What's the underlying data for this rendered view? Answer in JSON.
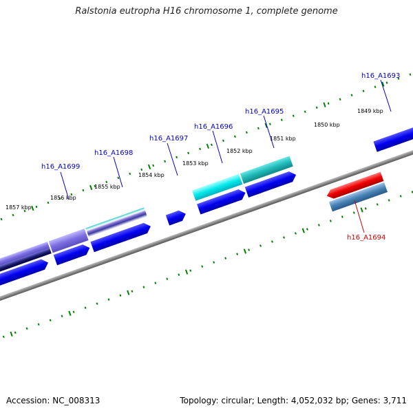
{
  "title": "Ralstonia eutropha H16 chromosome 1, complete genome",
  "accession": "Accession: NC_008313",
  "summary": "Topology: circular; Length: 4,052,032 bp; Genes: 3,711",
  "ticks": [
    "1857 kbp",
    "1856 kbp",
    "1855 kbp",
    "1854 kbp",
    "1853 kbp",
    "1852 kbp",
    "1851 kbp",
    "1850 kbp",
    "1849 kbp"
  ],
  "forward_labels": [
    "h16_A1699",
    "h16_A1698",
    "h16_A1697",
    "h16_A1696",
    "h16_A1695",
    "h16_A1693"
  ],
  "reverse_labels": [
    "h16_A1694"
  ],
  "colors": {
    "forward_label": "#0000cc",
    "reverse_label": "#cc0000",
    "tick": "#008000",
    "backbone": "#888888",
    "cds": "#0000ee",
    "reverse_gene": "#ee0000"
  }
}
